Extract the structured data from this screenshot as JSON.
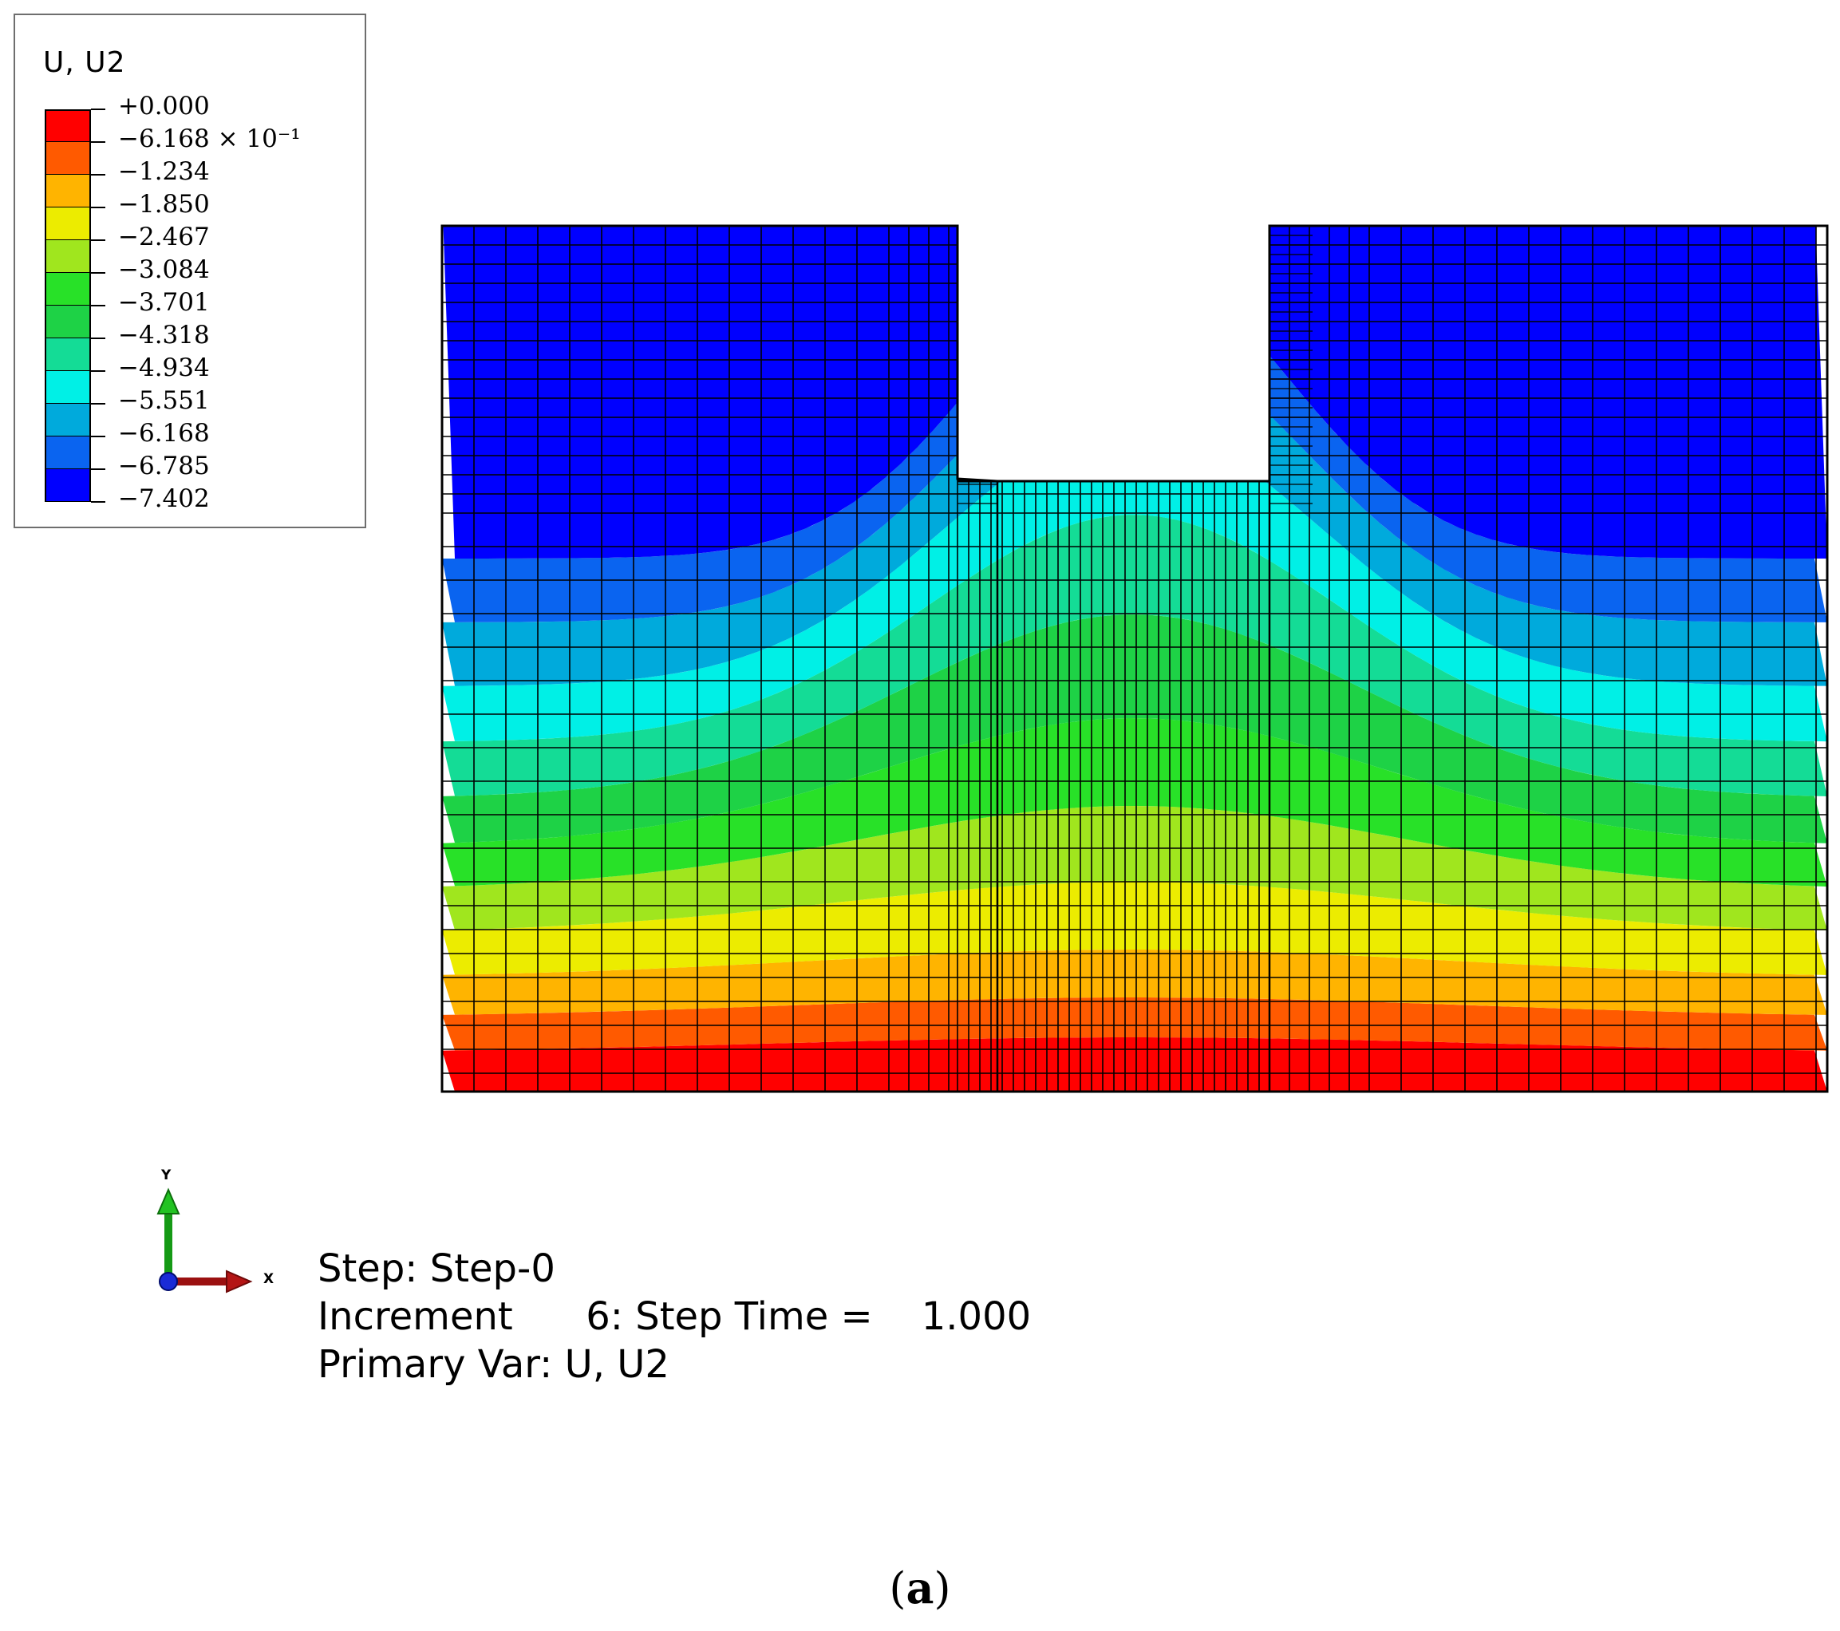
{
  "legend": {
    "title": "U, U2",
    "labels": [
      "+0.000",
      "−6.168 × 10⁻¹",
      "−1.234",
      "−1.850",
      "−2.467",
      "−3.084",
      "−3.701",
      "−4.318",
      "−4.934",
      "−5.551",
      "−6.168",
      "−6.785",
      "−7.402"
    ],
    "colors": [
      "#ff0000",
      "#ff5a00",
      "#ffb400",
      "#ecec00",
      "#a0e61e",
      "#28e128",
      "#1ed246",
      "#14dc96",
      "#00f0e6",
      "#00aadc",
      "#0a64f0",
      "#0000ff"
    ]
  },
  "triad": {
    "y_label": "Y",
    "x_label": "X"
  },
  "info": {
    "step": "Step: Step-0",
    "increment": "Increment      6: Step Time =    1.000",
    "primary_var": "Primary Var: U, U2"
  },
  "caption": {
    "open": "(",
    "letter": "a",
    "close": ")"
  }
}
